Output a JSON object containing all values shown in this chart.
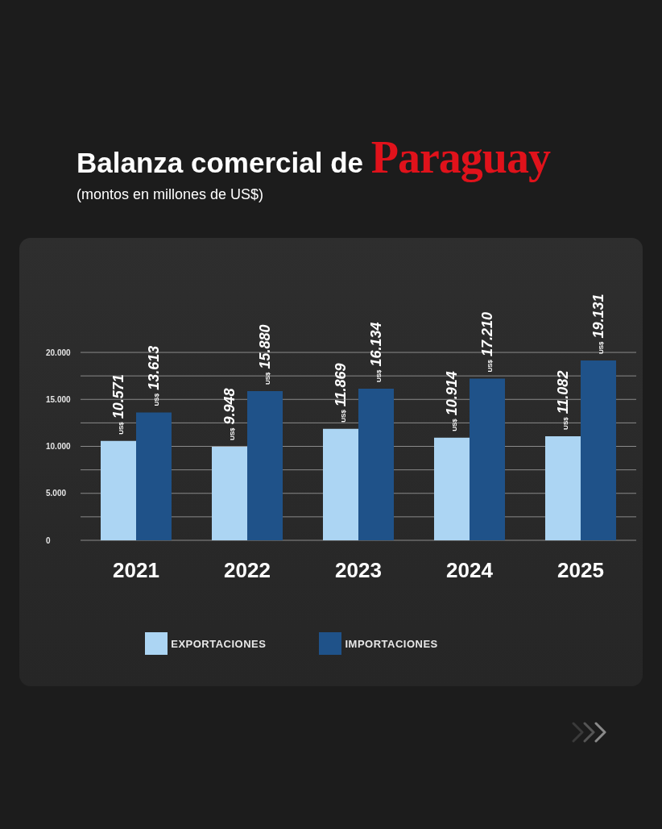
{
  "chart_data": {
    "type": "bar",
    "title": "Balanza comercial de Paraguay",
    "subtitle": "(montos en millones de US$)",
    "categories": [
      "2021",
      "2022",
      "2023",
      "2024",
      "2025"
    ],
    "series": [
      {
        "name": "EXPORTACIONES",
        "color": "#acd5f3",
        "values": [
          10571,
          9948,
          11869,
          10914,
          11082
        ],
        "value_labels": [
          "US$ 10.571",
          "US$ 9.948",
          "US$ 11.869",
          "US$ 10.914",
          "US$ 11.082"
        ]
      },
      {
        "name": "IMPORTACIONES",
        "color": "#1f5289",
        "values": [
          13613,
          15880,
          16134,
          17210,
          19131
        ],
        "value_labels": [
          "US$ 13.613",
          "US$ 15.880",
          "US$ 16.134",
          "US$ 17.210",
          "US$ 19.131"
        ]
      }
    ],
    "ylim": [
      0,
      20000
    ],
    "yticks": [
      0,
      {
        "value": 2500,
        "label": null
      },
      {
        "value": 5000,
        "label": "5.000"
      },
      {
        "value": 7500,
        "label": null
      },
      {
        "value": 10000,
        "label": "10.000"
      },
      {
        "value": 12500,
        "label": null
      },
      {
        "value": 15000,
        "label": "15.000"
      },
      {
        "value": 17500,
        "label": null
      },
      {
        "value": 20000,
        "label": "20.000"
      }
    ],
    "grid": "y",
    "legend": "bottom"
  }
}
